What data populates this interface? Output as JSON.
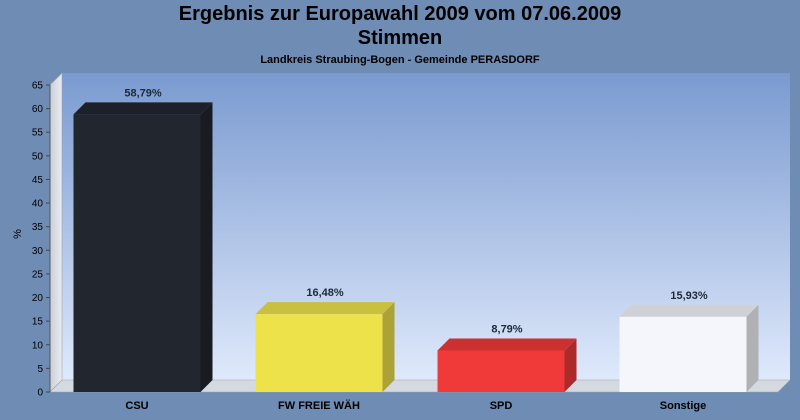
{
  "chart_data": {
    "type": "bar",
    "title": "Ergebnis zur Europawahl 2009 vom 07.06.2009",
    "title_line2": "Stimmen",
    "subtitle": "Landkreis Straubing-Bogen - Gemeinde PERASDORF",
    "ylabel": "%",
    "xlabel": "",
    "ylim": [
      0,
      65
    ],
    "yticks": [
      "0",
      "5",
      "10",
      "15",
      "20",
      "25",
      "30",
      "35",
      "40",
      "45",
      "50",
      "55",
      "60",
      "65"
    ],
    "grid": false,
    "categories": [
      "CSU",
      "FW FREIE WÄH",
      "SPD",
      "Sonstige"
    ],
    "values": [
      58.79,
      16.48,
      8.79,
      15.93
    ],
    "value_labels": [
      "58,79%",
      "16,48%",
      "8,79%",
      "15,93%"
    ],
    "colors": [
      "#22262f",
      "#ede24a",
      "#f03a3a",
      "#f4f6fb"
    ],
    "background": "#6f8cb4"
  }
}
